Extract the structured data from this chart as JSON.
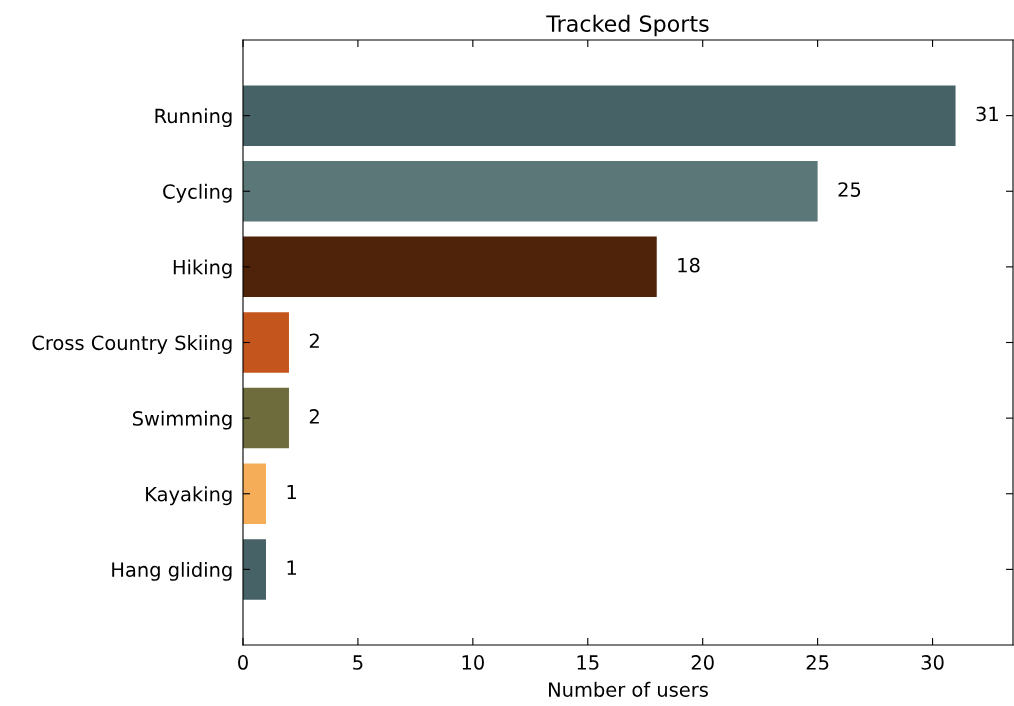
{
  "chart_data": {
    "type": "bar",
    "orientation": "horizontal",
    "title": "Tracked Sports",
    "xlabel": "Number of users",
    "categories": [
      "Running",
      "Cycling",
      "Hiking",
      "Cross Country Skiing",
      "Swimming",
      "Kayaking",
      "Hang gliding"
    ],
    "values": [
      31,
      25,
      18,
      2,
      2,
      1,
      1
    ],
    "colors": [
      "#476267",
      "#5c7778",
      "#4e230a",
      "#c4561d",
      "#6e6c3c",
      "#f5ae57",
      "#476267"
    ],
    "xlim": [
      0,
      33.5
    ],
    "xticks": [
      0,
      5,
      10,
      15,
      20,
      25,
      30
    ],
    "data_labels": true,
    "grid": false,
    "legend": false
  }
}
